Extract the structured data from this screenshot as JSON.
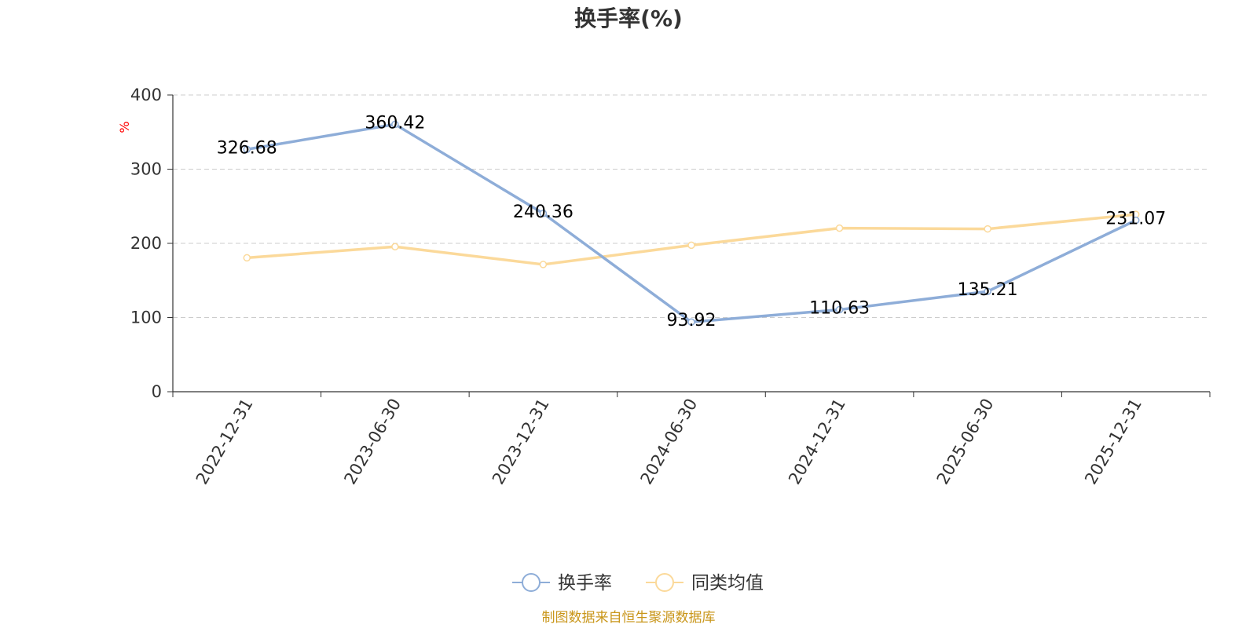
{
  "chart_data": {
    "type": "line",
    "title": "换手率(%)",
    "ylabel": "%",
    "xlabel": "",
    "ylim": [
      0,
      400
    ],
    "yticks": [
      0,
      100,
      200,
      300,
      400
    ],
    "grid": true,
    "legend_position": "bottom-center",
    "categories": [
      "2022-12-31",
      "2023-06-30",
      "2023-12-31",
      "2024-06-30",
      "2024-12-31",
      "2025-06-30",
      "2025-12-31"
    ],
    "series": [
      {
        "name": "换手率",
        "color": "#8eadd8",
        "values": [
          326.68,
          360.42,
          240.36,
          93.92,
          110.63,
          135.21,
          231.07
        ],
        "labels": [
          "326.68",
          "360.42",
          "240.36",
          "93.92",
          "110.63",
          "135.21",
          "231.07"
        ],
        "show_labels": true
      },
      {
        "name": "同类均值",
        "color": "#fbd99a",
        "values": [
          180.5,
          195.5,
          171.5,
          197.5,
          220.5,
          219.5,
          239.0
        ],
        "show_labels": false
      }
    ]
  },
  "colors": {
    "axis": "#333333",
    "grid": "#cccccc",
    "unit_label": "#ff0000",
    "source_note": "#c9961a"
  },
  "footer": {
    "source": "制图数据来自恒生聚源数据库"
  }
}
